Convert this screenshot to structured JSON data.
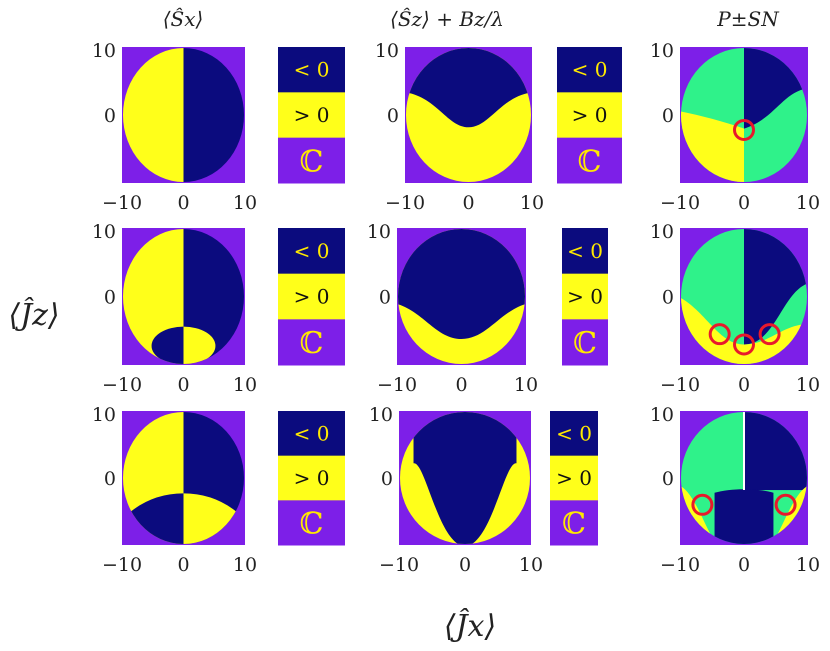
{
  "column_titles": [
    "⟨Ŝx⟩",
    "⟨Ŝz⟩ + Bz/λ",
    "P±SN"
  ],
  "y_axis_label": "⟨Ĵz⟩",
  "x_axis_label": "⟨Ĵx⟩",
  "legend_labels": [
    "< 0",
    "> 0",
    "ℂ"
  ],
  "colors": {
    "negative": "#0b0b7e",
    "positive": "#ffff1a",
    "complex": "#7d1fe8",
    "green": "#2ff28a",
    "circle": "#e8192c",
    "legend_text": "#ffe900"
  },
  "chart_data": [
    {
      "type": "heatmap",
      "row": 1,
      "col": 1,
      "panel": "Sx",
      "x_ticks": [
        "−10",
        "0",
        "10"
      ],
      "y_ticks": [
        "10",
        "0"
      ],
      "xlim": [
        -10,
        10
      ],
      "ylim": [
        -10,
        10
      ],
      "radius": 10
    },
    {
      "type": "heatmap",
      "row": 1,
      "col": 2,
      "panel": "Sz",
      "x_ticks": [
        "−10",
        "0",
        "10"
      ],
      "y_ticks": [
        "10",
        "0"
      ],
      "xlim": [
        -10,
        10
      ],
      "ylim": [
        -10,
        10
      ],
      "radius": 10
    },
    {
      "type": "heatmap",
      "row": 1,
      "col": 3,
      "panel": "PSN",
      "x_ticks": [
        "−10",
        "0",
        "10"
      ],
      "y_ticks": [
        "10",
        "0"
      ],
      "xlim": [
        -10,
        10
      ],
      "ylim": [
        -10,
        10
      ],
      "radius": 10,
      "markers": [
        [
          0,
          -2.2
        ]
      ]
    },
    {
      "type": "heatmap",
      "row": 2,
      "col": 1,
      "panel": "Sx",
      "x_ticks": [
        "−10",
        "0",
        "10"
      ],
      "y_ticks": [
        "10",
        "0"
      ],
      "xlim": [
        -10,
        10
      ],
      "ylim": [
        -10,
        10
      ],
      "radius": 10
    },
    {
      "type": "heatmap",
      "row": 2,
      "col": 2,
      "panel": "Sz",
      "x_ticks": [
        "−10",
        "0",
        "10"
      ],
      "y_ticks": [
        "10",
        "0"
      ],
      "xlim": [
        -10,
        10
      ],
      "ylim": [
        -10,
        10
      ],
      "radius": 10
    },
    {
      "type": "heatmap",
      "row": 2,
      "col": 3,
      "panel": "PSN",
      "x_ticks": [
        "−10",
        "0",
        "10"
      ],
      "y_ticks": [
        "10",
        "0"
      ],
      "xlim": [
        -10,
        10
      ],
      "ylim": [
        -10,
        10
      ],
      "radius": 10,
      "markers": [
        [
          -3.8,
          -5.5
        ],
        [
          0,
          -7
        ],
        [
          4,
          -5.5
        ]
      ]
    },
    {
      "type": "heatmap",
      "row": 3,
      "col": 1,
      "panel": "Sx",
      "x_ticks": [
        "−10",
        "0",
        "10"
      ],
      "y_ticks": [
        "10",
        "0"
      ],
      "xlim": [
        -10,
        10
      ],
      "ylim": [
        -10,
        10
      ],
      "radius": 10
    },
    {
      "type": "heatmap",
      "row": 3,
      "col": 2,
      "panel": "Sz",
      "x_ticks": [
        "−10",
        "0",
        "10"
      ],
      "y_ticks": [
        "10",
        "0"
      ],
      "xlim": [
        -10,
        10
      ],
      "ylim": [
        -10,
        10
      ],
      "radius": 10
    },
    {
      "type": "heatmap",
      "row": 3,
      "col": 3,
      "panel": "PSN",
      "x_ticks": [
        "−10",
        "0",
        "10"
      ],
      "y_ticks": [
        "10",
        "0"
      ],
      "xlim": [
        -10,
        10
      ],
      "ylim": [
        -10,
        10
      ],
      "radius": 10,
      "markers": [
        [
          -6.5,
          -4
        ],
        [
          6.5,
          -4
        ]
      ]
    }
  ]
}
